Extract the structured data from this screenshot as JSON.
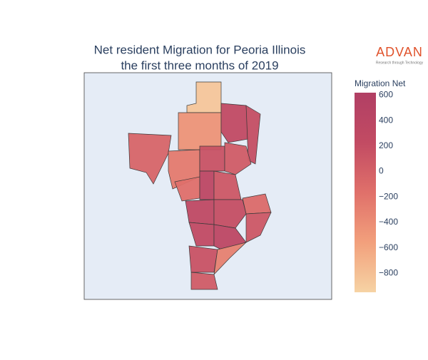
{
  "chart_data": {
    "type": "choropleth",
    "title_lines": [
      "Net resident Migration for Peoria Illinois",
      "the first three months of 2019"
    ],
    "colorbar_title": "Migration Net",
    "colorscale": [
      "#f6d3a4",
      "#f2a07c",
      "#e0706a",
      "#c24b63",
      "#b13f64"
    ],
    "colorlim": [
      -950,
      620
    ],
    "cticks": [
      600,
      400,
      200,
      0,
      {
        "value": -200,
        "label": "−200"
      },
      {
        "value": -400,
        "label": "−400"
      },
      {
        "value": -600,
        "label": "−600"
      },
      {
        "value": -800,
        "label": "−800"
      }
    ],
    "values": [
      -850,
      -450,
      250,
      200,
      -50,
      -250,
      150,
      50,
      -150,
      350,
      100,
      300,
      200,
      -100,
      250,
      350,
      100,
      150,
      -300,
      50
    ],
    "logo": {
      "name": "ADVAN",
      "tagline": "Research through Technology"
    }
  }
}
